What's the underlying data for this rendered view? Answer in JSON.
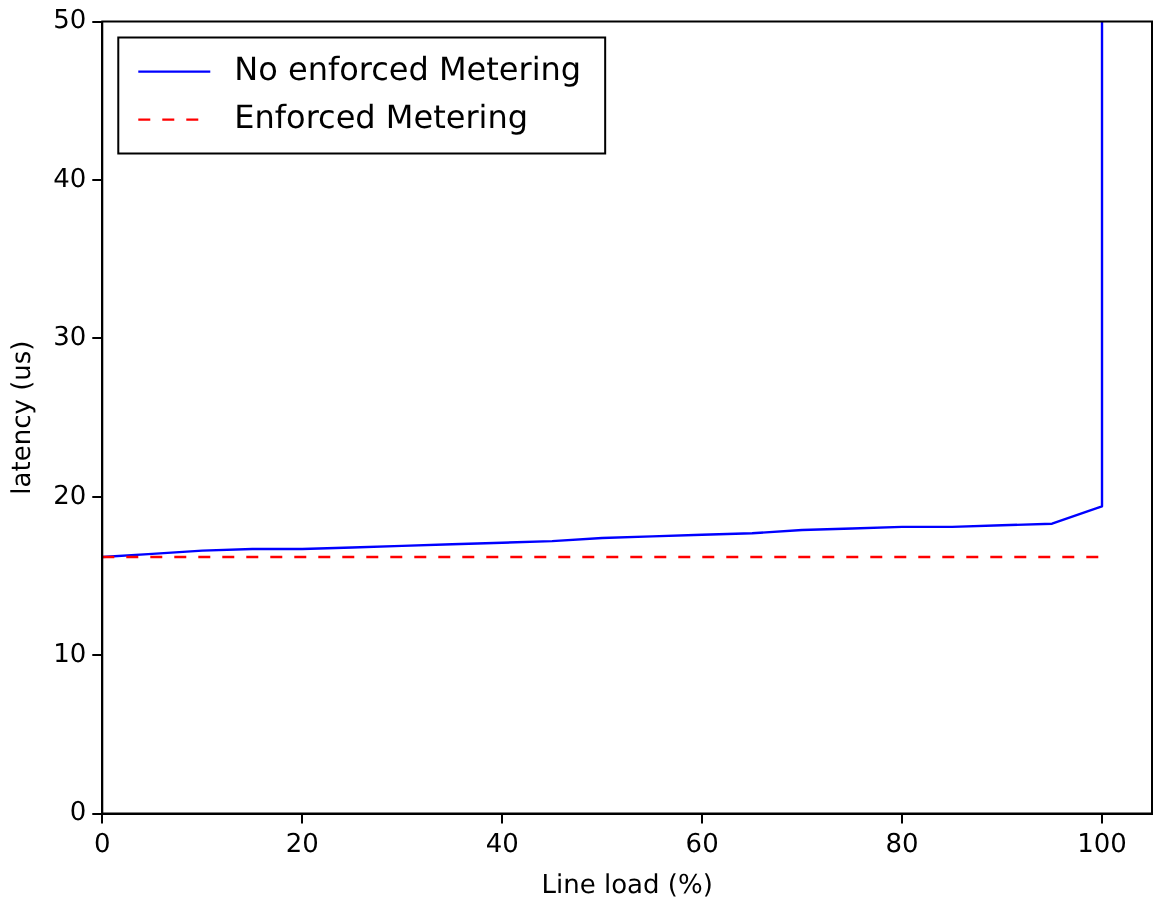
{
  "chart_data": {
    "type": "line",
    "xlabel": "Line load (%)",
    "ylabel": "latency (us)",
    "xlim": [
      0,
      105
    ],
    "xticks": [
      0,
      20,
      40,
      60,
      80,
      100
    ],
    "ylim": [
      0,
      50
    ],
    "yticks": [
      0,
      10,
      20,
      30,
      40,
      50
    ],
    "grid": false,
    "legend": "top left",
    "marker": "none",
    "series": [
      {
        "name": "No enforced Metering",
        "color": "#0000ff",
        "line_style": "solid",
        "x": [
          0,
          5,
          10,
          15,
          20,
          25,
          30,
          35,
          40,
          45,
          50,
          55,
          60,
          65,
          70,
          75,
          80,
          85,
          90,
          95,
          100,
          100
        ],
        "values": [
          16.2,
          16.4,
          16.6,
          16.7,
          16.7,
          16.8,
          16.9,
          17.0,
          17.1,
          17.2,
          17.4,
          17.5,
          17.6,
          17.7,
          17.9,
          18.0,
          18.1,
          18.1,
          18.2,
          18.3,
          19.4,
          50
        ]
      },
      {
        "name": "Enforced Metering",
        "color": "#ff0000",
        "line_style": "dashed",
        "x": [
          0,
          100
        ],
        "values": [
          16.2,
          16.2
        ]
      }
    ]
  }
}
